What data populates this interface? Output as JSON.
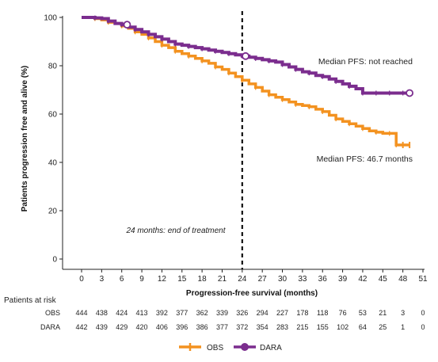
{
  "chart_data": {
    "type": "line",
    "title": "",
    "xlabel": "Progression-free survival (months)",
    "ylabel": "Patients progression free and alive (%)",
    "xlim": [
      0,
      51
    ],
    "ylim": [
      0,
      100
    ],
    "x_ticks": [
      0,
      3,
      6,
      9,
      12,
      15,
      18,
      21,
      24,
      27,
      30,
      33,
      36,
      39,
      42,
      45,
      48,
      51
    ],
    "y_ticks": [
      0,
      20,
      40,
      60,
      80,
      100
    ],
    "grid": false,
    "legend_position": "bottom-center",
    "series": [
      {
        "name": "OBS",
        "color": "#f39220",
        "x": [
          0,
          2,
          3,
          4,
          5,
          6,
          7,
          8,
          9,
          10,
          11,
          12,
          13,
          14,
          15,
          16,
          17,
          18,
          19,
          20,
          21,
          22,
          23,
          24,
          25,
          26,
          27,
          28,
          29,
          30,
          31,
          32,
          33,
          34,
          35,
          36,
          37,
          38,
          39,
          40,
          41,
          42,
          43,
          44,
          45,
          46,
          47,
          47,
          48,
          49
        ],
        "y": [
          100,
          99.5,
          99,
          98,
          97.5,
          96.5,
          95.5,
          94,
          93,
          91.5,
          90,
          88.5,
          87.5,
          86,
          85,
          84,
          83,
          82,
          81,
          79.5,
          78.5,
          77,
          75.5,
          74,
          72.5,
          71,
          69.5,
          68,
          67,
          66,
          65,
          64,
          63.5,
          63,
          62,
          61,
          59.5,
          58,
          57,
          56,
          55,
          54,
          53,
          52.5,
          52,
          52,
          52,
          47.2,
          47.2,
          47.2
        ]
      },
      {
        "name": "DARA",
        "color": "#7b2d8e",
        "x": [
          0,
          2,
          3,
          4,
          5,
          6,
          7,
          8,
          9,
          10,
          11,
          12,
          13,
          14,
          15,
          16,
          17,
          18,
          19,
          20,
          21,
          22,
          23,
          24,
          25,
          26,
          27,
          28,
          29,
          30,
          31,
          32,
          33,
          34,
          35,
          36,
          37,
          38,
          39,
          40,
          41,
          42,
          43,
          44,
          45,
          46,
          47,
          48,
          49
        ],
        "y": [
          100,
          99.8,
          99.5,
          98.5,
          97.5,
          97,
          96,
          95,
          94,
          93,
          92,
          91,
          90,
          89,
          88.5,
          88,
          87.5,
          87,
          86.5,
          86,
          85.5,
          85,
          84.5,
          84,
          83.5,
          83,
          82.5,
          82,
          81.5,
          80.5,
          79.5,
          78.5,
          77.5,
          77,
          76,
          75.5,
          74.5,
          73.5,
          72.5,
          71.5,
          70.5,
          68.7,
          68.7,
          68.7,
          68.7,
          68.7,
          68.7,
          68.7,
          68.7
        ]
      }
    ],
    "vline": {
      "x": 24,
      "style": "dashed"
    },
    "annotations": [
      {
        "text": "Median PFS: not reached",
        "x": 49,
        "y": 82
      },
      {
        "text": "Median PFS: 46.7 months",
        "x": 49,
        "y": 41
      },
      {
        "text": "24 months: end of treatment",
        "x": 15,
        "y": 12
      }
    ],
    "risk_table": {
      "header": "Patients at risk",
      "times": [
        0,
        3,
        6,
        9,
        12,
        15,
        18,
        21,
        24,
        27,
        30,
        33,
        36,
        39,
        42,
        45,
        48,
        51
      ],
      "rows": [
        {
          "label": "OBS",
          "values": [
            "444",
            "438",
            "424",
            "413",
            "392",
            "377",
            "362",
            "339",
            "326",
            "294",
            "227",
            "178",
            "118",
            "76",
            "53",
            "21",
            "3",
            "0"
          ]
        },
        {
          "label": "DARA",
          "values": [
            "442",
            "439",
            "429",
            "420",
            "406",
            "396",
            "386",
            "377",
            "372",
            "354",
            "283",
            "215",
            "155",
            "102",
            "64",
            "25",
            "1",
            "0"
          ]
        }
      ]
    }
  }
}
